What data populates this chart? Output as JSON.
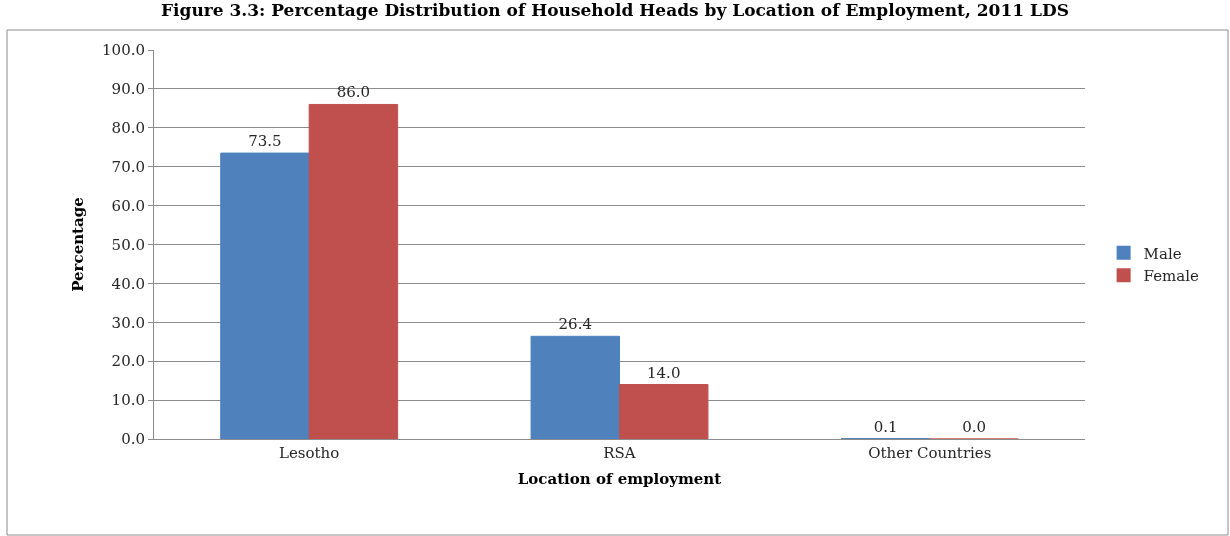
{
  "chart_data": {
    "type": "bar",
    "title": "Figure 3.3: Percentage Distribution of Household Heads by Location of Employment, 2011 LDS",
    "xlabel": "Location of employment",
    "ylabel": "Percentage",
    "categories": [
      "Lesotho",
      "RSA",
      "Other Countries"
    ],
    "series": [
      {
        "name": "Male",
        "color": "#4f81bd",
        "values": [
          73.5,
          26.4,
          0.1
        ],
        "value_labels": [
          "73.5",
          "26.4",
          "0.1"
        ]
      },
      {
        "name": "Female",
        "color": "#c0504d",
        "values": [
          86.0,
          14.0,
          0.0
        ],
        "value_labels": [
          "86.0",
          "14.0",
          "0.0"
        ]
      }
    ],
    "ylim": [
      0,
      100
    ],
    "yticks": [
      {
        "value": 0,
        "label": "0.0"
      },
      {
        "value": 10,
        "label": "10.0"
      },
      {
        "value": 20,
        "label": "20.0"
      },
      {
        "value": 30,
        "label": "30.0"
      },
      {
        "value": 40,
        "label": "40.0"
      },
      {
        "value": 50,
        "label": "50.0"
      },
      {
        "value": 60,
        "label": "60.0"
      },
      {
        "value": 70,
        "label": "70.0"
      },
      {
        "value": 80,
        "label": "80.0"
      },
      {
        "value": 90,
        "label": "90.0"
      },
      {
        "value": 100,
        "label": "100.0"
      }
    ],
    "grid": "y",
    "legend": "right"
  }
}
